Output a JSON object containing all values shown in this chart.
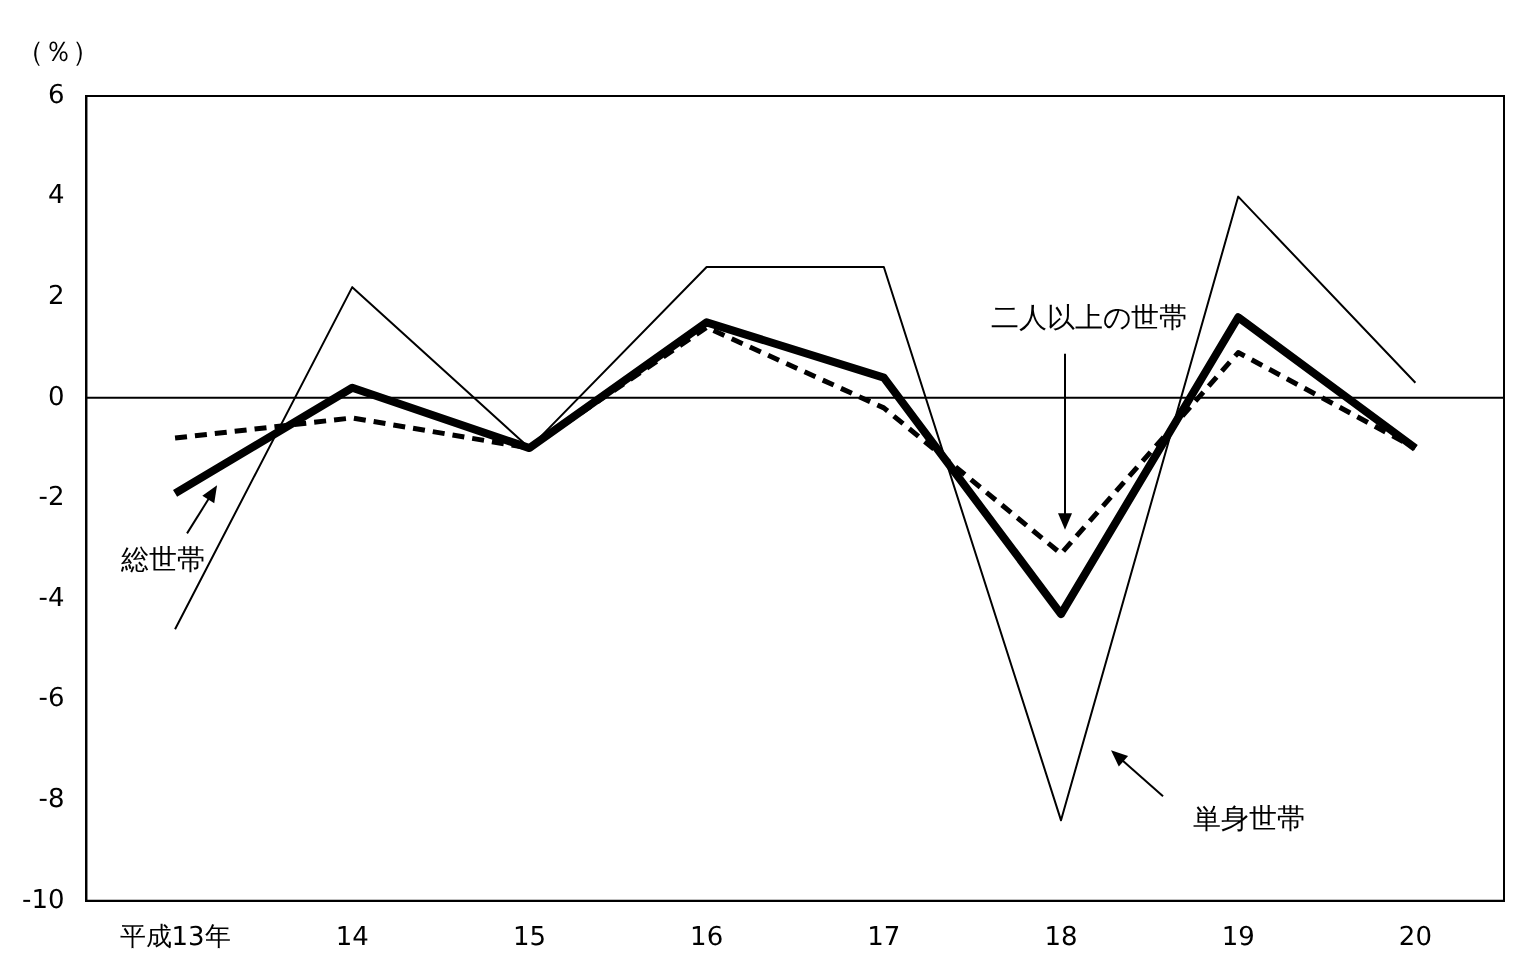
{
  "chart_data": {
    "type": "line",
    "ylabel": "（％）",
    "categories": [
      "平成13年",
      "14",
      "15",
      "16",
      "17",
      "18",
      "19",
      "20"
    ],
    "series": [
      {
        "color": "#000000",
        "line_style": "solid",
        "values": [
          -1.9,
          0.2,
          -1.0,
          1.5,
          0.4,
          -4.3,
          1.6,
          -1.0
        ]
      },
      {
        "color": "#000000",
        "line_style": "dashed",
        "values": [
          -0.8,
          -0.4,
          -1.0,
          1.4,
          -0.2,
          -3.1,
          0.9,
          -1.0
        ]
      },
      {
        "color": "#000000",
        "line_style": "solid",
        "values": [
          -4.6,
          2.2,
          -1.0,
          2.6,
          2.6,
          -8.4,
          4.0,
          0.3
        ]
      }
    ],
    "annotations": [
      "総世帯",
      "二人以上の世帯",
      "単身世帯"
    ],
    "ylim": [
      -10,
      6
    ],
    "yticks": [
      -10,
      -8,
      -6,
      -4,
      -2,
      0,
      2,
      4,
      6
    ],
    "grid": false,
    "legend": false,
    "marker": "none",
    "ref_lines": [
      {
        "axis": "y",
        "value": 0,
        "color": "#000000"
      }
    ]
  }
}
